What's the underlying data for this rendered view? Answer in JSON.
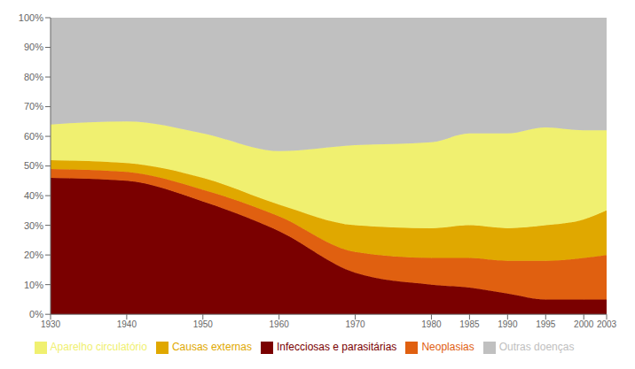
{
  "chart_data": {
    "type": "area",
    "stacked": true,
    "grid": false,
    "legend": "bottom",
    "x": [
      1930,
      1940,
      1950,
      1960,
      1970,
      1980,
      1985,
      1990,
      1995,
      2000,
      2003
    ],
    "series": [
      {
        "name": "Infecciosas e parasitárias",
        "color": "#7a0000",
        "values": [
          46,
          45,
          38,
          28,
          14,
          10,
          9,
          7,
          5,
          5,
          5
        ]
      },
      {
        "name": "Neoplasias",
        "color": "#e06010",
        "values": [
          3,
          3,
          4,
          5,
          7,
          9,
          10,
          11,
          13,
          14,
          15
        ]
      },
      {
        "name": "Causas externas",
        "color": "#e0a800",
        "values": [
          3,
          3,
          4,
          4,
          9,
          10,
          11,
          11,
          12,
          13,
          15
        ]
      },
      {
        "name": "Aparelho circulatório",
        "color": "#f0f070",
        "values": [
          12,
          14,
          15,
          18,
          27,
          29,
          31,
          32,
          33,
          30,
          27
        ]
      },
      {
        "name": "Outras doenças",
        "color": "#c0c0c0",
        "values": [
          36,
          35,
          39,
          45,
          43,
          42,
          39,
          39,
          37,
          38,
          38
        ]
      }
    ],
    "xlim": [
      1930,
      2003
    ],
    "xticks": [
      1930,
      1940,
      1950,
      1960,
      1970,
      1980,
      1985,
      1990,
      1995,
      2000,
      2003
    ],
    "ylim": [
      0,
      100
    ],
    "yticks": [
      {
        "value": 0,
        "label": "0%"
      },
      {
        "value": 10,
        "label": "10%"
      },
      {
        "value": 20,
        "label": "20%"
      },
      {
        "value": 30,
        "label": "30%"
      },
      {
        "value": 40,
        "label": "40%"
      },
      {
        "value": 50,
        "label": "50%"
      },
      {
        "value": 60,
        "label": "60%"
      },
      {
        "value": 70,
        "label": "70%"
      },
      {
        "value": 80,
        "label": "80%"
      },
      {
        "value": 90,
        "label": "90%"
      },
      {
        "value": 100,
        "label": "100%"
      }
    ]
  }
}
